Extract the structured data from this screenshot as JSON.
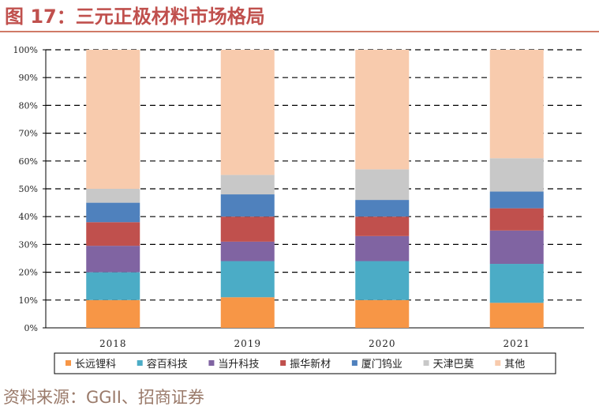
{
  "header": {
    "title": "图 17：三元正极材料市场格局"
  },
  "source": "资料来源：GGII、招商证券",
  "chart_data": {
    "type": "bar",
    "stacked": true,
    "title": "图 17：三元正极材料市场格局",
    "categories": [
      "2018",
      "2019",
      "2020",
      "2021"
    ],
    "ylim": [
      0,
      100
    ],
    "y_ticks": [
      "0%",
      "10%",
      "20%",
      "30%",
      "40%",
      "50%",
      "60%",
      "70%",
      "80%",
      "90%",
      "100%"
    ],
    "y_tick_values": [
      0,
      10,
      20,
      30,
      40,
      50,
      60,
      70,
      80,
      90,
      100
    ],
    "grid": true,
    "legend_position": "bottom",
    "series": [
      {
        "name": "长远锂科",
        "color": "#f79646",
        "values": [
          10,
          11,
          10,
          9
        ]
      },
      {
        "name": "容百科技",
        "color": "#4bacc6",
        "values": [
          10,
          13,
          14,
          14
        ]
      },
      {
        "name": "当升科技",
        "color": "#8064a2",
        "values": [
          9.5,
          7,
          9,
          12
        ]
      },
      {
        "name": "振华新材",
        "color": "#c0504d",
        "values": [
          8.5,
          9,
          7,
          8
        ]
      },
      {
        "name": "厦门钨业",
        "color": "#4f81bd",
        "values": [
          7,
          8,
          6,
          6
        ]
      },
      {
        "name": "天津巴莫",
        "color": "#c8c8c8",
        "values": [
          5,
          7,
          11,
          12
        ]
      },
      {
        "name": "其他",
        "color": "#f8cbad",
        "values": [
          50,
          45,
          43,
          39
        ]
      }
    ]
  }
}
